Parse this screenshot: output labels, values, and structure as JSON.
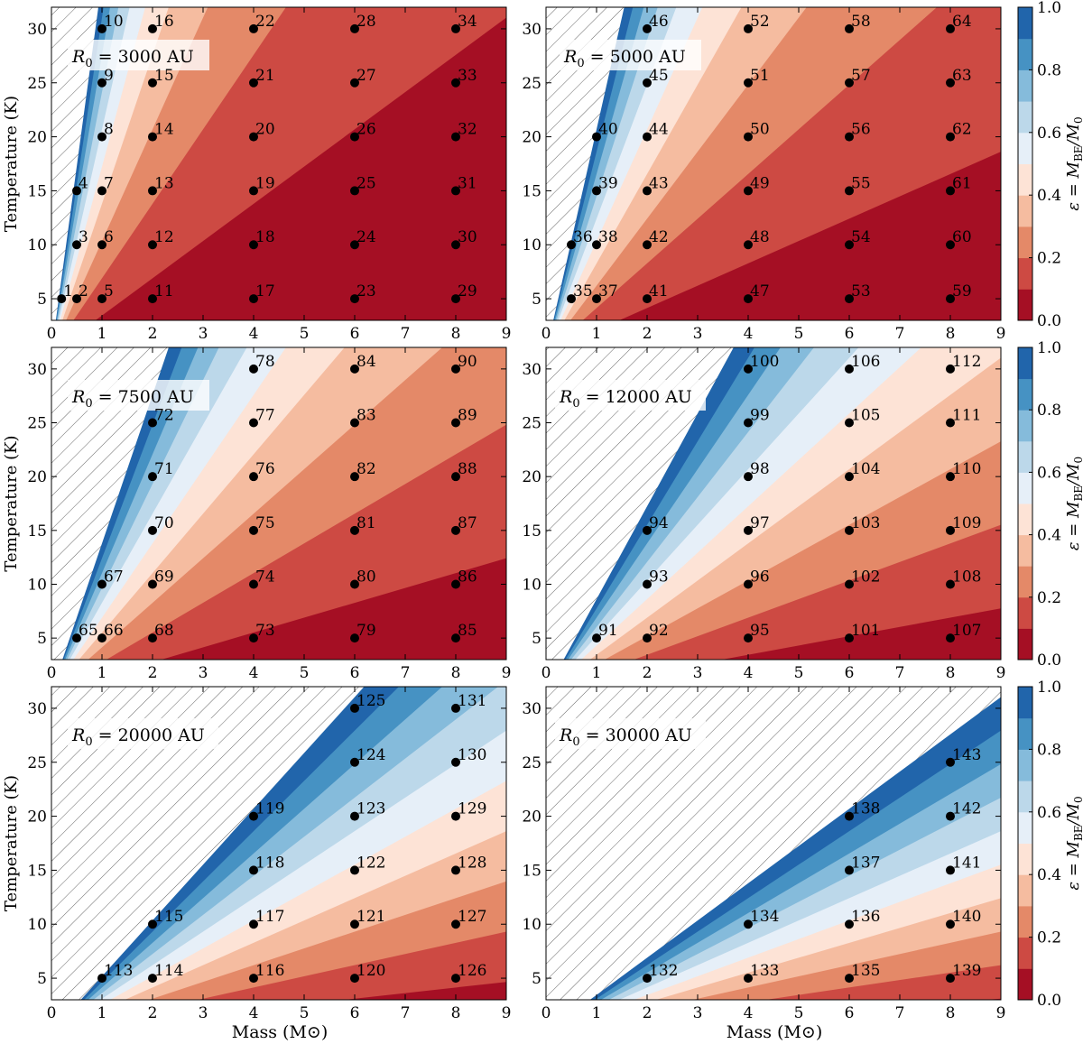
{
  "figure": {
    "xlabel": "Mass (M⊙)",
    "ylabel": "Temperature (K)",
    "colorbar_label": "ε = M_BE/M₀",
    "colorbar_label_parts": [
      "ε = M",
      "BE",
      "/M",
      "0"
    ],
    "colorbar_ticks": [
      "0.0",
      "0.2",
      "0.4",
      "0.6",
      "0.8",
      "1.0"
    ],
    "colorbar_levels": [
      0.0,
      0.1,
      0.2,
      0.3,
      0.4,
      0.5,
      0.6,
      0.7,
      0.8,
      0.9,
      1.0
    ],
    "colors": [
      "#a50f24",
      "#cd4a43",
      "#e48968",
      "#f5bca0",
      "#fde3d6",
      "#e6eff8",
      "#bcd8ea",
      "#85bbdb",
      "#4692c3",
      "#2165ab"
    ],
    "hatch_region_meaning": "epsilon > 1",
    "x_ticks": [
      "0",
      "1",
      "2",
      "3",
      "4",
      "5",
      "6",
      "7",
      "8",
      "9"
    ],
    "y_ticks": [
      "5",
      "10",
      "15",
      "20",
      "25",
      "30"
    ]
  },
  "chart_data": [
    {
      "type": "scatter",
      "panel_label": "R0 = 3000 AU",
      "panel_label_parts": [
        "R",
        "0",
        " = 3000 AU"
      ],
      "R0_AU": 3000,
      "xlim": [
        0,
        9
      ],
      "ylim": [
        3,
        32
      ],
      "models": [
        {
          "id": "1",
          "mass": 0.2,
          "T": 5
        },
        {
          "id": "2",
          "mass": 0.5,
          "T": 5
        },
        {
          "id": "3",
          "mass": 0.5,
          "T": 10
        },
        {
          "id": "4",
          "mass": 0.5,
          "T": 15
        },
        {
          "id": "5",
          "mass": 1,
          "T": 5
        },
        {
          "id": "6",
          "mass": 1,
          "T": 10
        },
        {
          "id": "7",
          "mass": 1,
          "T": 15
        },
        {
          "id": "8",
          "mass": 1,
          "T": 20
        },
        {
          "id": "9",
          "mass": 1,
          "T": 25
        },
        {
          "id": "10",
          "mass": 1,
          "T": 30
        },
        {
          "id": "11",
          "mass": 2,
          "T": 5
        },
        {
          "id": "12",
          "mass": 2,
          "T": 10
        },
        {
          "id": "13",
          "mass": 2,
          "T": 15
        },
        {
          "id": "14",
          "mass": 2,
          "T": 20
        },
        {
          "id": "15",
          "mass": 2,
          "T": 25
        },
        {
          "id": "16",
          "mass": 2,
          "T": 30
        },
        {
          "id": "17",
          "mass": 4,
          "T": 5
        },
        {
          "id": "18",
          "mass": 4,
          "T": 10
        },
        {
          "id": "19",
          "mass": 4,
          "T": 15
        },
        {
          "id": "20",
          "mass": 4,
          "T": 20
        },
        {
          "id": "21",
          "mass": 4,
          "T": 25
        },
        {
          "id": "22",
          "mass": 4,
          "T": 30
        },
        {
          "id": "23",
          "mass": 6,
          "T": 5
        },
        {
          "id": "24",
          "mass": 6,
          "T": 10
        },
        {
          "id": "25",
          "mass": 6,
          "T": 15
        },
        {
          "id": "26",
          "mass": 6,
          "T": 20
        },
        {
          "id": "27",
          "mass": 6,
          "T": 25
        },
        {
          "id": "28",
          "mass": 6,
          "T": 30
        },
        {
          "id": "29",
          "mass": 8,
          "T": 5
        },
        {
          "id": "30",
          "mass": 8,
          "T": 10
        },
        {
          "id": "31",
          "mass": 8,
          "T": 15
        },
        {
          "id": "32",
          "mass": 8,
          "T": 20
        },
        {
          "id": "33",
          "mass": 8,
          "T": 25
        },
        {
          "id": "34",
          "mass": 8,
          "T": 30
        }
      ]
    },
    {
      "type": "scatter",
      "panel_label": "R0 = 5000 AU",
      "panel_label_parts": [
        "R",
        "0",
        " = 5000 AU"
      ],
      "R0_AU": 5000,
      "xlim": [
        0,
        9
      ],
      "ylim": [
        3,
        32
      ],
      "models": [
        {
          "id": "35",
          "mass": 0.5,
          "T": 5
        },
        {
          "id": "36",
          "mass": 0.5,
          "T": 10
        },
        {
          "id": "37",
          "mass": 1,
          "T": 5
        },
        {
          "id": "38",
          "mass": 1,
          "T": 10
        },
        {
          "id": "39",
          "mass": 1,
          "T": 15
        },
        {
          "id": "40",
          "mass": 1,
          "T": 20
        },
        {
          "id": "41",
          "mass": 2,
          "T": 5
        },
        {
          "id": "42",
          "mass": 2,
          "T": 10
        },
        {
          "id": "43",
          "mass": 2,
          "T": 15
        },
        {
          "id": "44",
          "mass": 2,
          "T": 20
        },
        {
          "id": "45",
          "mass": 2,
          "T": 25
        },
        {
          "id": "46",
          "mass": 2,
          "T": 30
        },
        {
          "id": "47",
          "mass": 4,
          "T": 5
        },
        {
          "id": "48",
          "mass": 4,
          "T": 10
        },
        {
          "id": "49",
          "mass": 4,
          "T": 15
        },
        {
          "id": "50",
          "mass": 4,
          "T": 20
        },
        {
          "id": "51",
          "mass": 4,
          "T": 25
        },
        {
          "id": "52",
          "mass": 4,
          "T": 30
        },
        {
          "id": "53",
          "mass": 6,
          "T": 5
        },
        {
          "id": "54",
          "mass": 6,
          "T": 10
        },
        {
          "id": "55",
          "mass": 6,
          "T": 15
        },
        {
          "id": "56",
          "mass": 6,
          "T": 20
        },
        {
          "id": "57",
          "mass": 6,
          "T": 25
        },
        {
          "id": "58",
          "mass": 6,
          "T": 30
        },
        {
          "id": "59",
          "mass": 8,
          "T": 5
        },
        {
          "id": "60",
          "mass": 8,
          "T": 10
        },
        {
          "id": "61",
          "mass": 8,
          "T": 15
        },
        {
          "id": "62",
          "mass": 8,
          "T": 20
        },
        {
          "id": "63",
          "mass": 8,
          "T": 25
        },
        {
          "id": "64",
          "mass": 8,
          "T": 30
        }
      ]
    },
    {
      "type": "scatter",
      "panel_label": "R0 = 7500 AU",
      "panel_label_parts": [
        "R",
        "0",
        " = 7500 AU"
      ],
      "R0_AU": 7500,
      "xlim": [
        0,
        9
      ],
      "ylim": [
        3,
        32
      ],
      "models": [
        {
          "id": "65",
          "mass": 0.5,
          "T": 5
        },
        {
          "id": "66",
          "mass": 1,
          "T": 5
        },
        {
          "id": "67",
          "mass": 1,
          "T": 10
        },
        {
          "id": "68",
          "mass": 2,
          "T": 5
        },
        {
          "id": "69",
          "mass": 2,
          "T": 10
        },
        {
          "id": "70",
          "mass": 2,
          "T": 15
        },
        {
          "id": "71",
          "mass": 2,
          "T": 20
        },
        {
          "id": "72",
          "mass": 2,
          "T": 25
        },
        {
          "id": "73",
          "mass": 4,
          "T": 5
        },
        {
          "id": "74",
          "mass": 4,
          "T": 10
        },
        {
          "id": "75",
          "mass": 4,
          "T": 15
        },
        {
          "id": "76",
          "mass": 4,
          "T": 20
        },
        {
          "id": "77",
          "mass": 4,
          "T": 25
        },
        {
          "id": "78",
          "mass": 4,
          "T": 30
        },
        {
          "id": "79",
          "mass": 6,
          "T": 5
        },
        {
          "id": "80",
          "mass": 6,
          "T": 10
        },
        {
          "id": "81",
          "mass": 6,
          "T": 15
        },
        {
          "id": "82",
          "mass": 6,
          "T": 20
        },
        {
          "id": "83",
          "mass": 6,
          "T": 25
        },
        {
          "id": "84",
          "mass": 6,
          "T": 30
        },
        {
          "id": "85",
          "mass": 8,
          "T": 5
        },
        {
          "id": "86",
          "mass": 8,
          "T": 10
        },
        {
          "id": "87",
          "mass": 8,
          "T": 15
        },
        {
          "id": "88",
          "mass": 8,
          "T": 20
        },
        {
          "id": "89",
          "mass": 8,
          "T": 25
        },
        {
          "id": "90",
          "mass": 8,
          "T": 30
        }
      ]
    },
    {
      "type": "scatter",
      "panel_label": "R0 = 12000 AU",
      "panel_label_parts": [
        "R",
        "0",
        " = 12000 AU"
      ],
      "R0_AU": 12000,
      "xlim": [
        0,
        9
      ],
      "ylim": [
        3,
        32
      ],
      "models": [
        {
          "id": "91",
          "mass": 1,
          "T": 5
        },
        {
          "id": "92",
          "mass": 2,
          "T": 5
        },
        {
          "id": "93",
          "mass": 2,
          "T": 10
        },
        {
          "id": "94",
          "mass": 2,
          "T": 15
        },
        {
          "id": "95",
          "mass": 4,
          "T": 5
        },
        {
          "id": "96",
          "mass": 4,
          "T": 10
        },
        {
          "id": "97",
          "mass": 4,
          "T": 15
        },
        {
          "id": "98",
          "mass": 4,
          "T": 20
        },
        {
          "id": "99",
          "mass": 4,
          "T": 25
        },
        {
          "id": "100",
          "mass": 4,
          "T": 30
        },
        {
          "id": "101",
          "mass": 6,
          "T": 5
        },
        {
          "id": "102",
          "mass": 6,
          "T": 10
        },
        {
          "id": "103",
          "mass": 6,
          "T": 15
        },
        {
          "id": "104",
          "mass": 6,
          "T": 20
        },
        {
          "id": "105",
          "mass": 6,
          "T": 25
        },
        {
          "id": "106",
          "mass": 6,
          "T": 30
        },
        {
          "id": "107",
          "mass": 8,
          "T": 5
        },
        {
          "id": "108",
          "mass": 8,
          "T": 10
        },
        {
          "id": "109",
          "mass": 8,
          "T": 15
        },
        {
          "id": "110",
          "mass": 8,
          "T": 20
        },
        {
          "id": "111",
          "mass": 8,
          "T": 25
        },
        {
          "id": "112",
          "mass": 8,
          "T": 30
        }
      ]
    },
    {
      "type": "scatter",
      "panel_label": "R0 = 20000 AU",
      "panel_label_parts": [
        "R",
        "0",
        " = 20000 AU"
      ],
      "R0_AU": 20000,
      "xlim": [
        0,
        9
      ],
      "ylim": [
        3,
        32
      ],
      "models": [
        {
          "id": "113",
          "mass": 1,
          "T": 5
        },
        {
          "id": "114",
          "mass": 2,
          "T": 5
        },
        {
          "id": "115",
          "mass": 2,
          "T": 10
        },
        {
          "id": "116",
          "mass": 4,
          "T": 5
        },
        {
          "id": "117",
          "mass": 4,
          "T": 10
        },
        {
          "id": "118",
          "mass": 4,
          "T": 15
        },
        {
          "id": "119",
          "mass": 4,
          "T": 20
        },
        {
          "id": "120",
          "mass": 6,
          "T": 5
        },
        {
          "id": "121",
          "mass": 6,
          "T": 10
        },
        {
          "id": "122",
          "mass": 6,
          "T": 15
        },
        {
          "id": "123",
          "mass": 6,
          "T": 20
        },
        {
          "id": "124",
          "mass": 6,
          "T": 25
        },
        {
          "id": "125",
          "mass": 6,
          "T": 30
        },
        {
          "id": "126",
          "mass": 8,
          "T": 5
        },
        {
          "id": "127",
          "mass": 8,
          "T": 10
        },
        {
          "id": "128",
          "mass": 8,
          "T": 15
        },
        {
          "id": "129",
          "mass": 8,
          "T": 20
        },
        {
          "id": "130",
          "mass": 8,
          "T": 25
        },
        {
          "id": "131",
          "mass": 8,
          "T": 30
        }
      ]
    },
    {
      "type": "scatter",
      "panel_label": "R0 = 30000 AU",
      "panel_label_parts": [
        "R",
        "0",
        " = 30000 AU"
      ],
      "R0_AU": 30000,
      "xlim": [
        0,
        9
      ],
      "ylim": [
        3,
        32
      ],
      "models": [
        {
          "id": "132",
          "mass": 2,
          "T": 5
        },
        {
          "id": "133",
          "mass": 4,
          "T": 5
        },
        {
          "id": "134",
          "mass": 4,
          "T": 10
        },
        {
          "id": "135",
          "mass": 6,
          "T": 5
        },
        {
          "id": "136",
          "mass": 6,
          "T": 10
        },
        {
          "id": "137",
          "mass": 6,
          "T": 15
        },
        {
          "id": "138",
          "mass": 6,
          "T": 20
        },
        {
          "id": "139",
          "mass": 8,
          "T": 5
        },
        {
          "id": "140",
          "mass": 8,
          "T": 10
        },
        {
          "id": "141",
          "mass": 8,
          "T": 15
        },
        {
          "id": "142",
          "mass": 8,
          "T": 20
        },
        {
          "id": "143",
          "mass": 8,
          "T": 25
        }
      ]
    }
  ]
}
